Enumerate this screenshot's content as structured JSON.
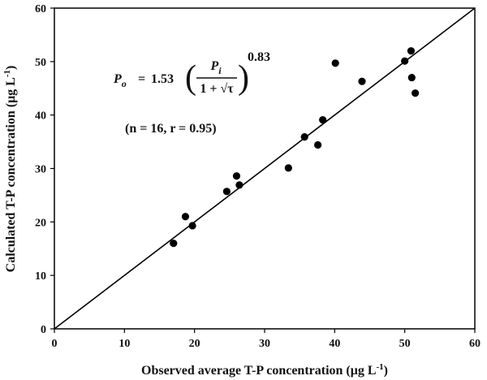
{
  "chart_data": {
    "type": "scatter",
    "title": "",
    "xlabel": "Observed average T-P concentration (μg L",
    "xlabel_sup": "-1",
    "xlabel_end": ")",
    "ylabel": "Calculated T-P concentration (μg L",
    "ylabel_sup": "-1",
    "ylabel_end": ")",
    "xlim": [
      0,
      60
    ],
    "ylim": [
      0,
      60
    ],
    "x_ticks": [
      0,
      10,
      20,
      30,
      40,
      50,
      60
    ],
    "y_ticks": [
      0,
      10,
      20,
      30,
      40,
      50,
      60
    ],
    "grid": false,
    "legend": "none",
    "colors": {
      "points": "#000000",
      "line": "#000000",
      "axes": "#000000"
    },
    "series": [
      {
        "points": [
          {
            "x": 17.0,
            "y": 16.0
          },
          {
            "x": 18.7,
            "y": 21.0
          },
          {
            "x": 19.7,
            "y": 19.3
          },
          {
            "x": 24.6,
            "y": 25.7
          },
          {
            "x": 26.0,
            "y": 28.6
          },
          {
            "x": 26.4,
            "y": 26.9
          },
          {
            "x": 33.4,
            "y": 30.1
          },
          {
            "x": 35.7,
            "y": 35.9
          },
          {
            "x": 37.6,
            "y": 34.4
          },
          {
            "x": 38.3,
            "y": 39.1
          },
          {
            "x": 40.1,
            "y": 49.7
          },
          {
            "x": 43.9,
            "y": 46.3
          },
          {
            "x": 50.0,
            "y": 50.1
          },
          {
            "x": 50.9,
            "y": 52.0
          },
          {
            "x": 51.0,
            "y": 47.0
          },
          {
            "x": 51.5,
            "y": 44.1
          }
        ]
      }
    ],
    "reference_line": {
      "x": [
        0,
        60
      ],
      "y": [
        0,
        60
      ]
    },
    "annotations": {
      "equation": {
        "lhs": "P",
        "lhs_sub": "o",
        "eq": "=",
        "coef": "1.53",
        "numerator": "P",
        "numerator_sub": "i",
        "denominator": "1 + √τ",
        "exponent": "0.83"
      },
      "stats": "(n = 16, r = 0.95)"
    }
  }
}
